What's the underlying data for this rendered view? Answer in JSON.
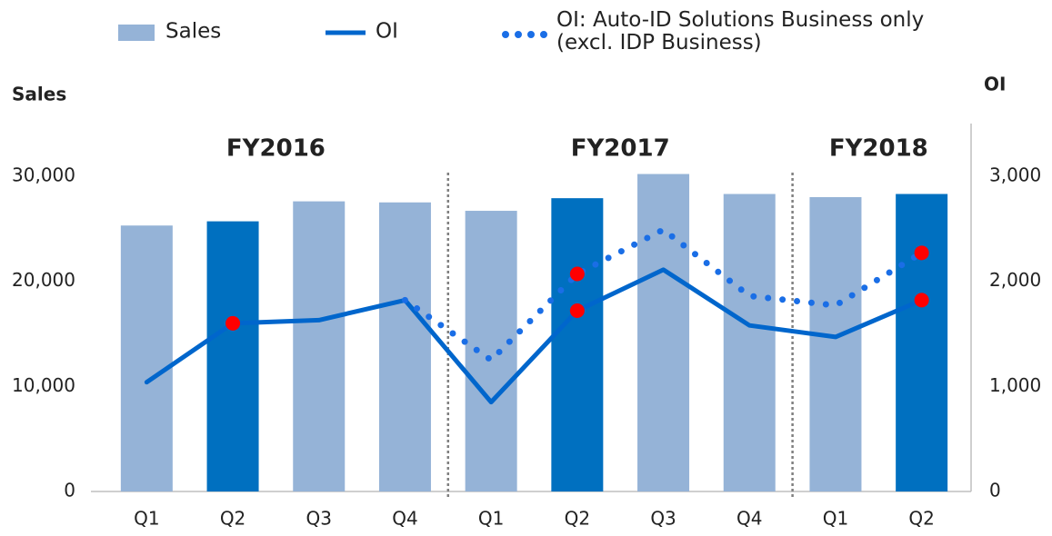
{
  "chart_data": {
    "type": "bar_line",
    "y_label": "Sales",
    "y2_label": "OI",
    "categories": [
      "Q1",
      "Q2",
      "Q3",
      "Q4",
      "Q1",
      "Q2",
      "Q3",
      "Q4",
      "Q1",
      "Q2"
    ],
    "groups": [
      {
        "label": "FY2016",
        "start": 0,
        "end": 3
      },
      {
        "label": "FY2017",
        "start": 4,
        "end": 7
      },
      {
        "label": "FY2018",
        "start": 8,
        "end": 9
      }
    ],
    "series": [
      {
        "name": "Sales",
        "type": "bar",
        "color": "#95b3d7",
        "colors": [
          "#95b3d7",
          "#0070c0",
          "#95b3d7",
          "#95b3d7",
          "#95b3d7",
          "#0070c0",
          "#95b3d7",
          "#95b3d7",
          "#95b3d7",
          "#0070c0"
        ],
        "values": [
          25300,
          25700,
          27600,
          27500,
          26700,
          27900,
          30200,
          28300,
          28000,
          28300
        ]
      },
      {
        "name": "OI",
        "type": "line",
        "axis": "y2",
        "color": "#0066cc",
        "values": [
          1040,
          1600,
          1630,
          1820,
          850,
          1720,
          2110,
          1580,
          1470,
          1820
        ]
      },
      {
        "name": "OI: Auto-ID Solutions Business only\n(excl. IDP Business)",
        "type": "dotted",
        "axis": "y2",
        "color": "#1a6ee6",
        "values": [
          null,
          null,
          null,
          1820,
          1250,
          2070,
          2490,
          1860,
          1770,
          2270
        ]
      }
    ],
    "highlight_indices": [
      1,
      5,
      9
    ],
    "highlight_color": "#ff0000",
    "ylim": [
      0,
      35000
    ],
    "yticks": [
      0,
      {
        "value": 10000,
        "label": "10,000"
      },
      {
        "value": 20000,
        "label": "20,000"
      },
      {
        "value": 30000,
        "label": "30,000"
      }
    ],
    "y2lim": [
      0,
      3500
    ],
    "y2ticks": [
      0,
      {
        "value": 1000,
        "label": "1,000"
      },
      {
        "value": 2000,
        "label": "2,000"
      },
      {
        "value": 3000,
        "label": "3,000"
      }
    ]
  }
}
